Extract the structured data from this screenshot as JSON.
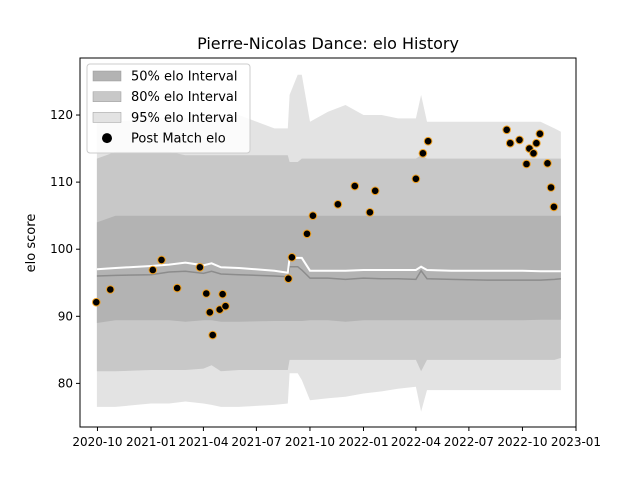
{
  "chart_data": {
    "type": "scatter",
    "title": "Pierre-Nicolas Dance: elo History",
    "xlabel": "",
    "ylabel": "elo score",
    "xlim": [
      "2020-09-01",
      "2023-01-01"
    ],
    "ylim": [
      73.5,
      128.5
    ],
    "x_ticks": [
      {
        "date": "2020-10-01",
        "label": "2020-10"
      },
      {
        "date": "2021-01-01",
        "label": "2021-01"
      },
      {
        "date": "2021-04-01",
        "label": "2021-04"
      },
      {
        "date": "2021-07-01",
        "label": "2021-07"
      },
      {
        "date": "2021-10-01",
        "label": "2021-10"
      },
      {
        "date": "2022-01-01",
        "label": "2022-01"
      },
      {
        "date": "2022-04-01",
        "label": "2022-04"
      },
      {
        "date": "2022-07-01",
        "label": "2022-07"
      },
      {
        "date": "2022-10-01",
        "label": "2022-10"
      },
      {
        "date": "2023-01-01",
        "label": "2023-01"
      }
    ],
    "y_ticks": [
      80,
      90,
      100,
      110,
      120
    ],
    "legend": {
      "position": "top-left",
      "entries": [
        {
          "label": "50% elo Interval",
          "kind": "band",
          "color": "#b3b3b3"
        },
        {
          "label": "80% elo Interval",
          "kind": "band",
          "color": "#c8c8c8"
        },
        {
          "label": "95% elo Interval",
          "kind": "band",
          "color": "#e3e3e3"
        },
        {
          "label": "Post Match elo",
          "kind": "marker",
          "color": "#000000"
        }
      ]
    },
    "colors": {
      "band95": "#e3e3e3",
      "band80": "#c8c8c8",
      "band50": "#b3b3b3",
      "median_line": "#ffffff",
      "lower_line": "#8c8c8c",
      "marker_fill": "#000000",
      "marker_edge": "#f0a020"
    },
    "bands": {
      "dates": [
        "2020-09-30",
        "2020-11-01",
        "2021-01-01",
        "2021-02-01",
        "2021-03-01",
        "2021-04-01",
        "2021-04-15",
        "2021-05-01",
        "2021-06-01",
        "2021-08-01",
        "2021-08-24",
        "2021-08-27",
        "2021-09-10",
        "2021-09-17",
        "2021-10-01",
        "2021-11-01",
        "2021-12-01",
        "2022-01-01",
        "2022-02-01",
        "2022-03-01",
        "2022-04-01",
        "2022-04-10",
        "2022-04-20",
        "2022-06-01",
        "2022-08-01",
        "2022-10-01",
        "2022-11-01",
        "2022-11-25",
        "2022-12-06"
      ],
      "upper95": [
        119.5,
        119.0,
        119.5,
        119.5,
        119.5,
        119.5,
        119.5,
        120.0,
        120.0,
        118.0,
        118.0,
        123.0,
        126.0,
        126.0,
        119.0,
        120.5,
        121.5,
        120.0,
        120.0,
        119.5,
        119.5,
        123.0,
        119.0,
        119.0,
        119.0,
        119.0,
        119.0,
        118.0,
        117.5
      ],
      "upper80": [
        113.5,
        114.5,
        114.5,
        114.5,
        114.0,
        114.0,
        114.0,
        114.0,
        114.0,
        114.0,
        114.0,
        113.0,
        113.0,
        113.5,
        113.5,
        113.5,
        113.5,
        113.5,
        113.5,
        113.5,
        113.5,
        114.0,
        113.5,
        113.5,
        113.5,
        113.5,
        113.5,
        113.5,
        113.5
      ],
      "upper50": [
        104.0,
        105.0,
        105.0,
        105.0,
        105.0,
        105.0,
        105.0,
        105.0,
        105.0,
        105.0,
        105.0,
        105.0,
        105.0,
        105.0,
        105.0,
        105.0,
        105.0,
        105.0,
        105.0,
        105.0,
        105.0,
        105.0,
        105.0,
        105.0,
        105.0,
        105.0,
        105.0,
        105.0,
        105.0
      ],
      "median": [
        97.0,
        97.2,
        97.5,
        97.7,
        98.0,
        97.6,
        97.9,
        97.3,
        97.2,
        96.8,
        96.5,
        98.7,
        98.7,
        98.7,
        96.8,
        96.8,
        96.8,
        96.9,
        96.9,
        96.9,
        96.9,
        97.4,
        96.9,
        96.8,
        96.8,
        96.8,
        96.7,
        96.7,
        96.7
      ],
      "lower_line": [
        96.0,
        96.1,
        96.2,
        96.6,
        96.7,
        96.4,
        96.7,
        96.3,
        96.2,
        96.0,
        95.9,
        97.4,
        97.4,
        96.9,
        95.7,
        95.7,
        95.5,
        95.7,
        95.6,
        95.6,
        95.5,
        96.8,
        95.6,
        95.5,
        95.4,
        95.4,
        95.4,
        95.5,
        95.6
      ],
      "lower50": [
        89.0,
        89.4,
        89.4,
        89.4,
        89.2,
        89.4,
        89.4,
        89.2,
        89.2,
        89.3,
        89.3,
        89.3,
        89.3,
        89.3,
        89.4,
        89.4,
        89.2,
        89.4,
        89.4,
        89.4,
        89.4,
        89.4,
        89.4,
        89.4,
        89.4,
        89.4,
        89.5,
        89.5,
        89.5
      ],
      "lower80": [
        81.8,
        81.8,
        82.0,
        82.0,
        82.0,
        82.2,
        82.7,
        81.8,
        82.0,
        82.0,
        82.0,
        83.5,
        83.5,
        83.5,
        83.5,
        83.5,
        83.5,
        83.5,
        83.5,
        83.5,
        83.5,
        81.8,
        83.5,
        83.5,
        83.5,
        83.5,
        83.5,
        83.5,
        83.8
      ],
      "lower95": [
        76.5,
        76.5,
        77.0,
        77.0,
        77.3,
        77.0,
        76.8,
        76.5,
        76.5,
        76.8,
        77.0,
        81.5,
        81.5,
        80.5,
        77.5,
        77.8,
        78.0,
        78.5,
        78.8,
        79.2,
        79.5,
        75.8,
        79.0,
        79.0,
        79.0,
        79.0,
        79.0,
        79.0,
        79.0
      ]
    },
    "points": [
      {
        "x": "2020-09-29",
        "y": 92.1
      },
      {
        "x": "2020-10-23",
        "y": 94.0
      },
      {
        "x": "2021-01-04",
        "y": 96.9
      },
      {
        "x": "2021-01-19",
        "y": 98.4
      },
      {
        "x": "2021-02-15",
        "y": 94.2
      },
      {
        "x": "2021-03-26",
        "y": 97.3
      },
      {
        "x": "2021-04-06",
        "y": 93.4
      },
      {
        "x": "2021-04-12",
        "y": 90.6
      },
      {
        "x": "2021-04-17",
        "y": 87.2
      },
      {
        "x": "2021-04-29",
        "y": 91.0
      },
      {
        "x": "2021-05-04",
        "y": 93.3
      },
      {
        "x": "2021-05-09",
        "y": 91.5
      },
      {
        "x": "2021-08-25",
        "y": 95.6
      },
      {
        "x": "2021-08-31",
        "y": 98.8
      },
      {
        "x": "2021-09-26",
        "y": 102.3
      },
      {
        "x": "2021-10-06",
        "y": 105.0
      },
      {
        "x": "2021-11-18",
        "y": 106.7
      },
      {
        "x": "2021-12-17",
        "y": 109.4
      },
      {
        "x": "2022-01-12",
        "y": 105.5
      },
      {
        "x": "2022-01-21",
        "y": 108.7
      },
      {
        "x": "2022-04-01",
        "y": 110.5
      },
      {
        "x": "2022-04-13",
        "y": 114.3
      },
      {
        "x": "2022-04-22",
        "y": 116.1
      },
      {
        "x": "2022-09-04",
        "y": 117.8
      },
      {
        "x": "2022-09-10",
        "y": 115.8
      },
      {
        "x": "2022-09-26",
        "y": 116.3
      },
      {
        "x": "2022-10-08",
        "y": 112.7
      },
      {
        "x": "2022-10-13",
        "y": 115.0
      },
      {
        "x": "2022-10-20",
        "y": 114.3
      },
      {
        "x": "2022-10-25",
        "y": 115.8
      },
      {
        "x": "2022-10-31",
        "y": 117.2
      },
      {
        "x": "2022-11-13",
        "y": 112.8
      },
      {
        "x": "2022-11-19",
        "y": 109.2
      },
      {
        "x": "2022-11-24",
        "y": 106.3
      }
    ]
  }
}
